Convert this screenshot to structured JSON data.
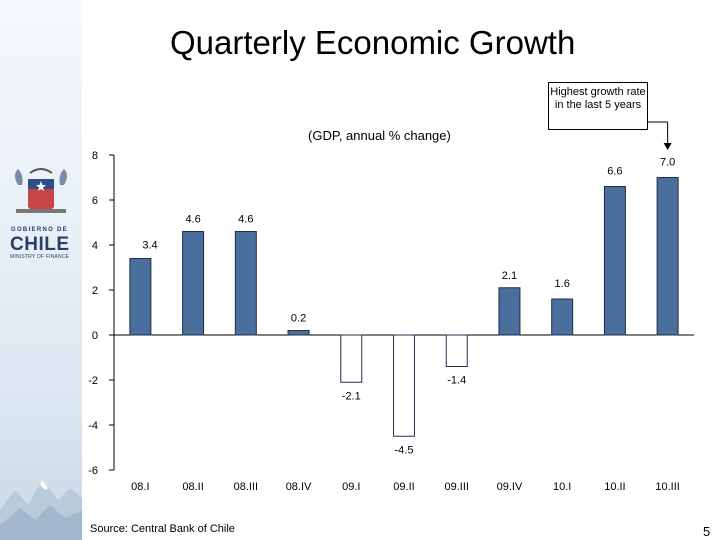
{
  "slide": {
    "title": "Quarterly Economic Growth",
    "source": "Source: Central Bank of Chile",
    "page_number": "5"
  },
  "logo": {
    "gobierno": "GOBIERNO DE",
    "chile": "CHILE",
    "ministry": "MINISTRY OF FINANCE"
  },
  "callout": {
    "text": "Highest growth rate in the last 5 years"
  },
  "colors": {
    "bar_fill": "#4a6f9c",
    "bar_negative_fill": "#ffffff",
    "bar_stroke": "#1f2e4a"
  },
  "chart_data": {
    "type": "bar",
    "title": "(GDP, annual % change)",
    "categories": [
      "08.I",
      "08.II",
      "08.III",
      "08.IV",
      "09.I",
      "09.II",
      "09.III",
      "09.IV",
      "10.I",
      "10.II",
      "10.III"
    ],
    "values": [
      3.4,
      4.6,
      4.6,
      0.2,
      -2.1,
      -4.5,
      -1.4,
      2.1,
      1.6,
      6.6,
      7.0
    ],
    "value_labels": [
      "3.4",
      "4.6",
      "4.6",
      "0.2",
      "-2.1",
      "-4.5",
      "-1.4",
      "2.1",
      "1.6",
      "6.6",
      "7.0"
    ],
    "ylim": [
      -6,
      8
    ],
    "yticks": [
      8,
      6,
      4,
      2,
      0,
      -2,
      -4,
      -6
    ],
    "xlabel": "",
    "ylabel": "",
    "grid": false,
    "annotation": "Highest growth rate in the last 5 years"
  }
}
